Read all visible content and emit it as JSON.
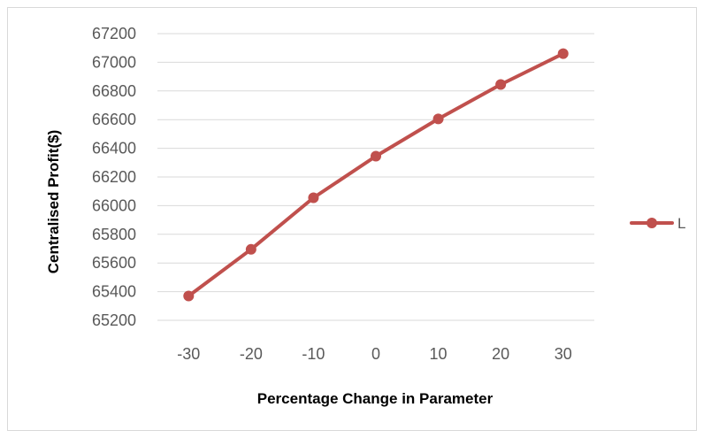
{
  "chart_data": {
    "type": "line",
    "title": "",
    "xlabel": "Percentage Change in Parameter",
    "ylabel": "Centralised Profit($)",
    "categories": [
      "-30",
      "-20",
      "-10",
      "0",
      "10",
      "20",
      "30"
    ],
    "ylim": [
      65200,
      67200
    ],
    "ytick_step": 200,
    "yticks": [
      "65200",
      "65400",
      "65600",
      "65800",
      "66000",
      "66200",
      "66400",
      "66600",
      "66800",
      "67000",
      "67200"
    ],
    "grid": true,
    "legend_position": "right",
    "series": [
      {
        "name": "L",
        "values": [
          65370,
          65695,
          66055,
          66345,
          66605,
          66845,
          67060
        ],
        "color": "#c0504d"
      }
    ]
  }
}
